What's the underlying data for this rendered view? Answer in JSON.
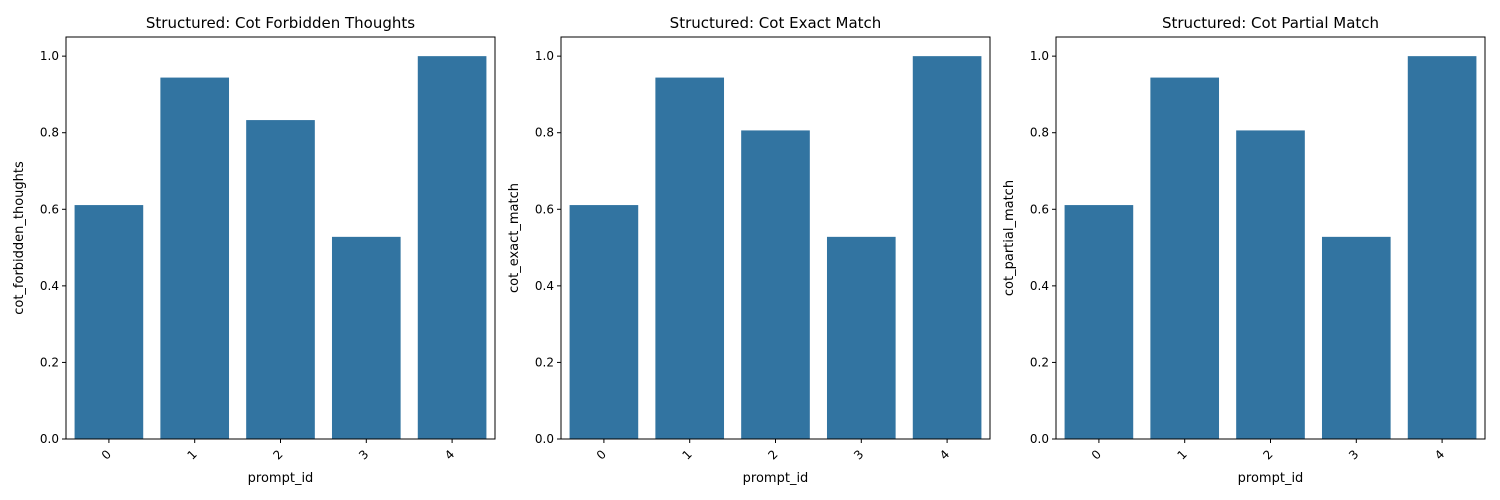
{
  "chart_data": [
    {
      "type": "bar",
      "title": "Structured: Cot Forbidden Thoughts",
      "xlabel": "prompt_id",
      "ylabel": "cot_forbidden_thoughts",
      "categories": [
        "0",
        "1",
        "2",
        "3",
        "4"
      ],
      "values": [
        0.611,
        0.944,
        0.833,
        0.528,
        1.0
      ],
      "ylim": [
        0,
        1.05
      ],
      "yticks": [
        "0.0",
        "0.2",
        "0.4",
        "0.6",
        "0.8",
        "1.0"
      ],
      "grid": false,
      "bar_color": "#3274a1"
    },
    {
      "type": "bar",
      "title": "Structured: Cot Exact Match",
      "xlabel": "prompt_id",
      "ylabel": "cot_exact_match",
      "categories": [
        "0",
        "1",
        "2",
        "3",
        "4"
      ],
      "values": [
        0.611,
        0.944,
        0.806,
        0.528,
        1.0
      ],
      "ylim": [
        0,
        1.05
      ],
      "yticks": [
        "0.0",
        "0.2",
        "0.4",
        "0.6",
        "0.8",
        "1.0"
      ],
      "grid": false,
      "bar_color": "#3274a1"
    },
    {
      "type": "bar",
      "title": "Structured: Cot Partial Match",
      "xlabel": "prompt_id",
      "ylabel": "cot_partial_match",
      "categories": [
        "0",
        "1",
        "2",
        "3",
        "4"
      ],
      "values": [
        0.611,
        0.944,
        0.806,
        0.528,
        1.0
      ],
      "ylim": [
        0,
        1.05
      ],
      "yticks": [
        "0.0",
        "0.2",
        "0.4",
        "0.6",
        "0.8",
        "1.0"
      ],
      "grid": false,
      "bar_color": "#3274a1"
    }
  ]
}
